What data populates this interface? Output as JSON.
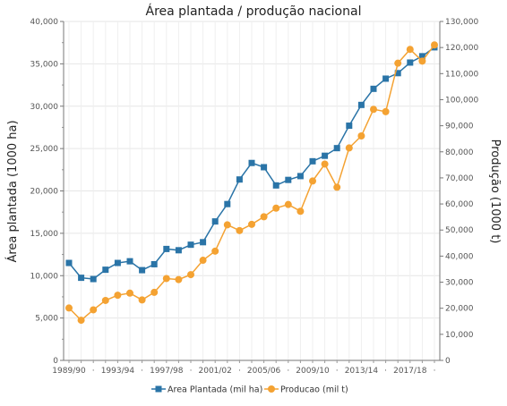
{
  "chart_data": {
    "type": "line",
    "title": "Área plantada / produção nacional",
    "ylabel_left": "Área plantada (1000 ha)",
    "ylabel_right": "Produção (1000 t)",
    "ylim_left": [
      0,
      40000
    ],
    "ylim_right": [
      0,
      130000
    ],
    "y_ticks_left": [
      "0",
      "5,000",
      "10,000",
      "15,000",
      "20,000",
      "25,000",
      "30,000",
      "35,000",
      "40,000"
    ],
    "y_ticks_right": [
      "0",
      "10,000",
      "20,000",
      "30,000",
      "40,000",
      "50,000",
      "60,000",
      "70,000",
      "80,000",
      "90,000",
      "100,000",
      "110,000",
      "120,000",
      "130,000"
    ],
    "categories": [
      "1989/90",
      "1990/91",
      "1991/92",
      "1992/93",
      "1993/94",
      "1994/95",
      "1995/96",
      "1996/97",
      "1997/98",
      "1998/99",
      "1999/00",
      "2000/01",
      "2001/02",
      "2002/03",
      "2003/04",
      "2004/05",
      "2005/06",
      "2006/07",
      "2007/08",
      "2008/09",
      "2009/10",
      "2010/11",
      "2011/12",
      "2012/13",
      "2013/14",
      "2014/15",
      "2015/16",
      "2016/17",
      "2017/18",
      "2018/19",
      "2019/20"
    ],
    "x_tick_labels": [
      "1989/90",
      "1993/94",
      "1997/98",
      "2001/02",
      "2005/06",
      "2009/10",
      "2013/14",
      "2017/18"
    ],
    "grid": true,
    "legend_position": "bottom-center",
    "series": [
      {
        "name": "Area Plantada (mil ha)",
        "axis": "left",
        "color": "#2a74a7",
        "marker": "square",
        "values": [
          11500,
          9750,
          9600,
          10700,
          11500,
          11700,
          10650,
          11350,
          13150,
          13000,
          13650,
          13950,
          16400,
          18450,
          21350,
          23300,
          22800,
          20650,
          21300,
          21750,
          23500,
          24150,
          25050,
          27700,
          30150,
          32050,
          33250,
          33900,
          35150,
          35900,
          36950
        ]
      },
      {
        "name": "Producao (mil t)",
        "axis": "right",
        "color": "#f4a232",
        "marker": "circle",
        "values": [
          20100,
          15400,
          19400,
          23000,
          25000,
          25800,
          23200,
          26100,
          31400,
          31000,
          32900,
          38400,
          41900,
          52000,
          49800,
          52200,
          55100,
          58400,
          59800,
          57200,
          68800,
          75300,
          66400,
          81500,
          86100,
          96300,
          95400,
          114000,
          119300,
          114800,
          121000
        ]
      }
    ]
  }
}
